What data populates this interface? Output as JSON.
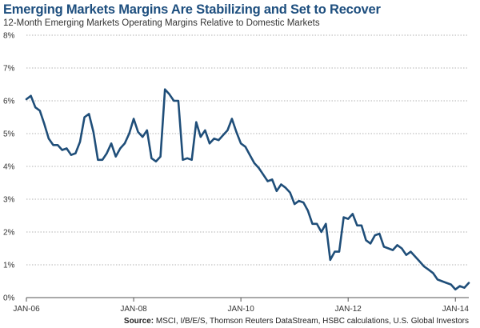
{
  "chart_data": {
    "type": "line",
    "title": "Emerging Markets Margins Are Stabilizing and Set to Recover",
    "subtitle": "12-Month Emerging Markets Operating Margins Relative to Domestic Markets",
    "source_label": "Source:",
    "source_text": "MSCI, I/B/E/S, Thomson Reuters DataStream, HSBC calculations, U.S. Global Investors",
    "ylim": [
      0,
      8
    ],
    "y_ticks": [
      "0%",
      "1%",
      "2%",
      "3%",
      "4%",
      "5%",
      "6%",
      "7%",
      "8%"
    ],
    "x_ticks": [
      {
        "label": "JAN-06",
        "x": "2006-01"
      },
      {
        "label": "JAN-08",
        "x": "2008-01"
      },
      {
        "label": "JAN-10",
        "x": "2010-01"
      },
      {
        "label": "JAN-12",
        "x": "2012-01"
      },
      {
        "label": "JAN-14",
        "x": "2014-01"
      }
    ],
    "xlim": [
      "2006-01",
      "2014-04"
    ],
    "grid": "horizontal dotted",
    "line_color": "#1f4e79",
    "series": [
      {
        "x": [
          "2006-01",
          "2006-02",
          "2006-03",
          "2006-04",
          "2006-05",
          "2006-06",
          "2006-07",
          "2006-08",
          "2006-09",
          "2006-10",
          "2006-11",
          "2006-12",
          "2007-01",
          "2007-02",
          "2007-03",
          "2007-04",
          "2007-05",
          "2007-06",
          "2007-07",
          "2007-08",
          "2007-09",
          "2007-10",
          "2007-11",
          "2007-12",
          "2008-01",
          "2008-02",
          "2008-03",
          "2008-04",
          "2008-05",
          "2008-06",
          "2008-07",
          "2008-08",
          "2008-09",
          "2008-10",
          "2008-11",
          "2008-12",
          "2009-01",
          "2009-02",
          "2009-03",
          "2009-04",
          "2009-05",
          "2009-06",
          "2009-07",
          "2009-08",
          "2009-09",
          "2009-10",
          "2009-11",
          "2009-12",
          "2010-01",
          "2010-02",
          "2010-03",
          "2010-04",
          "2010-05",
          "2010-06",
          "2010-07",
          "2010-08",
          "2010-09",
          "2010-10",
          "2010-11",
          "2010-12",
          "2011-01",
          "2011-02",
          "2011-03",
          "2011-04",
          "2011-05",
          "2011-06",
          "2011-07",
          "2011-08",
          "2011-09",
          "2011-10",
          "2011-11",
          "2011-12",
          "2012-01",
          "2012-02",
          "2012-03",
          "2012-04",
          "2012-05",
          "2012-06",
          "2012-07",
          "2012-08",
          "2012-09",
          "2012-10",
          "2012-11",
          "2012-12",
          "2013-01",
          "2013-02",
          "2013-03",
          "2013-04",
          "2013-05",
          "2013-06",
          "2013-07",
          "2013-08",
          "2013-09",
          "2013-10",
          "2013-11",
          "2013-12",
          "2014-01",
          "2014-02",
          "2014-03",
          "2014-04"
        ],
        "values": [
          6.05,
          6.15,
          5.8,
          5.7,
          5.3,
          4.85,
          4.65,
          4.65,
          4.5,
          4.55,
          4.35,
          4.4,
          4.75,
          5.5,
          5.6,
          5.05,
          4.2,
          4.2,
          4.4,
          4.7,
          4.3,
          4.55,
          4.7,
          5.0,
          5.45,
          5.05,
          4.9,
          5.1,
          4.25,
          4.15,
          4.3,
          6.35,
          6.2,
          6.0,
          6.0,
          4.2,
          4.25,
          4.2,
          5.35,
          4.9,
          5.1,
          4.7,
          4.85,
          4.8,
          4.95,
          5.1,
          5.45,
          5.05,
          4.7,
          4.6,
          4.35,
          4.1,
          3.95,
          3.75,
          3.55,
          3.6,
          3.25,
          3.45,
          3.35,
          3.2,
          2.85,
          2.95,
          2.9,
          2.65,
          2.25,
          2.25,
          2.0,
          2.25,
          1.15,
          1.4,
          1.4,
          2.45,
          2.4,
          2.55,
          2.2,
          2.2,
          1.75,
          1.65,
          1.9,
          1.95,
          1.55,
          1.5,
          1.45,
          1.6,
          1.5,
          1.3,
          1.4,
          1.25,
          1.1,
          0.95,
          0.85,
          0.75,
          0.55,
          0.5,
          0.45,
          0.4,
          0.25,
          0.35,
          0.3,
          0.45
        ]
      }
    ]
  }
}
